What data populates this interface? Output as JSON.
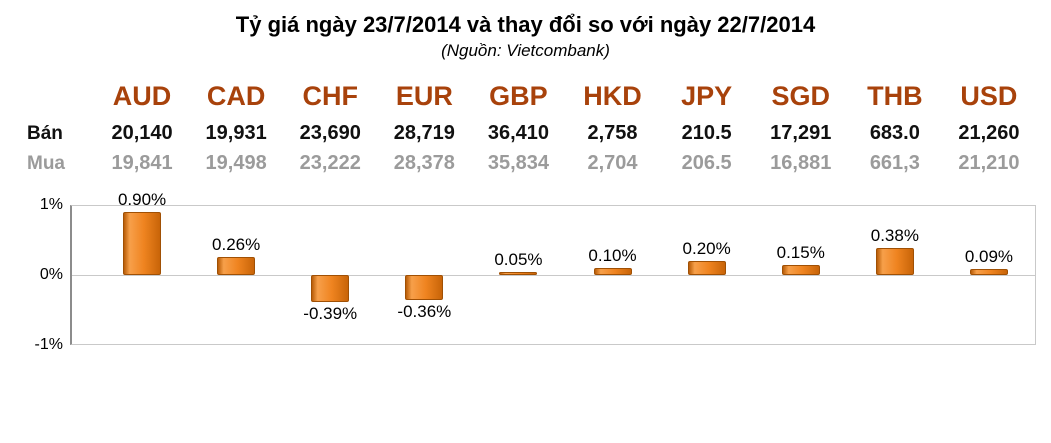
{
  "header": {
    "title": "Tỷ giá ngày 23/7/2014 và thay đổi so với ngày 22/7/2014",
    "subtitle": "(Nguồn: Vietcombank)"
  },
  "table": {
    "row_labels": {
      "sell": "Bán",
      "buy": "Mua"
    },
    "currencies": [
      "AUD",
      "CAD",
      "CHF",
      "EUR",
      "GBP",
      "HKD",
      "JPY",
      "SGD",
      "THB",
      "USD"
    ],
    "sell": [
      "20,140",
      "19,931",
      "23,690",
      "28,719",
      "36,410",
      "2,758",
      "210.5",
      "17,291",
      "683.0",
      "21,260"
    ],
    "buy": [
      "19,841",
      "19,498",
      "23,222",
      "28,378",
      "35,834",
      "2,704",
      "206.5",
      "16,881",
      "661,3",
      "21,210"
    ]
  },
  "chart_data": {
    "type": "bar",
    "categories": [
      "AUD",
      "CAD",
      "CHF",
      "EUR",
      "GBP",
      "HKD",
      "JPY",
      "SGD",
      "THB",
      "USD"
    ],
    "values": [
      0.9,
      0.26,
      -0.39,
      -0.36,
      0.05,
      0.1,
      0.2,
      0.15,
      0.38,
      0.09
    ],
    "labels": [
      "0.90%",
      "0.26%",
      "-0.39%",
      "-0.36%",
      "0.05%",
      "0.10%",
      "0.20%",
      "0.15%",
      "0.38%",
      "0.09%"
    ],
    "title": "Tỷ giá ngày 23/7/2014 và thay đổi so với ngày 22/7/2014",
    "xlabel": "",
    "ylabel": "",
    "ylim": [
      -1,
      1
    ],
    "yticks": [
      "1%",
      "0%",
      "-1%"
    ],
    "grid": true,
    "legend": false
  },
  "colors": {
    "currency_header": "#A8420B",
    "sell_text": "#111111",
    "buy_text": "#9B9B9B",
    "bar": "#E8791B",
    "bar_border": "#A05004",
    "gridline": "#C9C9C9",
    "axis": "#8C8C8C"
  }
}
